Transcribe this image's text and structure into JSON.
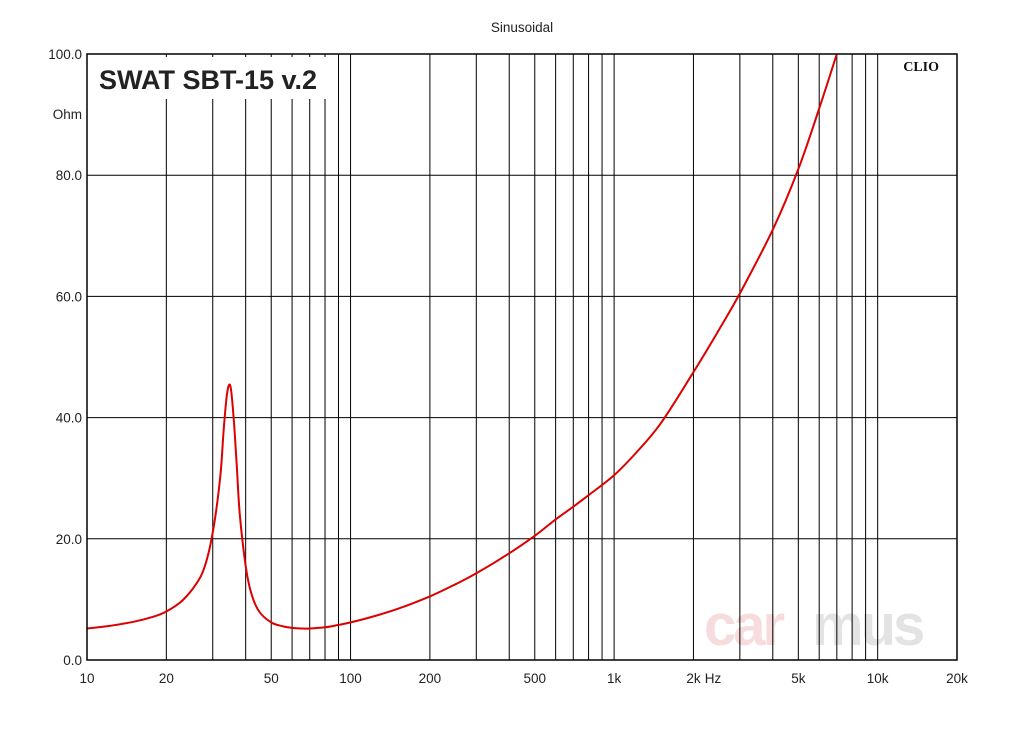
{
  "chart_data": {
    "type": "line",
    "title": "Sinusoidal",
    "product_label": "SWAT SBT-15 v.2",
    "brand_mark": "CLIO",
    "watermark": {
      "part1": "car",
      "part2": "mus"
    },
    "x_scale": "log",
    "xlim": [
      10,
      20000
    ],
    "ylim": [
      0,
      100
    ],
    "ylabel": "Ohm",
    "x_unit_label": "Hz",
    "grid": true,
    "x_ticks": [
      {
        "value": 10,
        "label": "10"
      },
      {
        "value": 20,
        "label": "20"
      },
      {
        "value": 50,
        "label": "50"
      },
      {
        "value": 100,
        "label": "100"
      },
      {
        "value": 200,
        "label": "200"
      },
      {
        "value": 500,
        "label": "500"
      },
      {
        "value": 1000,
        "label": "1k"
      },
      {
        "value": 2000,
        "label": "2k"
      },
      {
        "value": 5000,
        "label": "5k"
      },
      {
        "value": 10000,
        "label": "10k"
      },
      {
        "value": 20000,
        "label": "20k"
      }
    ],
    "y_ticks": [
      {
        "value": 0,
        "label": "0.0"
      },
      {
        "value": 20,
        "label": "20.0"
      },
      {
        "value": 40,
        "label": "40.0"
      },
      {
        "value": 60,
        "label": "60.0"
      },
      {
        "value": 80,
        "label": "80.0"
      },
      {
        "value": 100,
        "label": "100.0"
      }
    ],
    "series": [
      {
        "color": "#dd0000",
        "x": [
          10,
          12,
          15,
          18,
          20,
          23,
          26,
          28,
          30,
          32,
          33,
          34,
          35,
          36,
          37,
          38,
          40,
          42,
          45,
          50,
          55,
          60,
          65,
          70,
          80,
          90,
          100,
          120,
          150,
          200,
          250,
          300,
          400,
          500,
          600,
          700,
          800,
          1000,
          1200,
          1500,
          2000,
          2500,
          3000,
          4000,
          5000,
          6000,
          7000
        ],
        "y": [
          5.2,
          5.6,
          6.3,
          7.2,
          8.0,
          9.8,
          12.6,
          15.5,
          21.0,
          30.0,
          38.0,
          44.0,
          45.2,
          40.0,
          32.0,
          24.0,
          15.5,
          11.0,
          8.0,
          6.2,
          5.6,
          5.3,
          5.2,
          5.2,
          5.4,
          5.8,
          6.2,
          7.1,
          8.4,
          10.5,
          12.5,
          14.3,
          17.6,
          20.5,
          23.2,
          25.3,
          27.2,
          30.5,
          34.0,
          39.0,
          47.5,
          54.5,
          60.5,
          71.0,
          81.0,
          91.0,
          100.0
        ]
      }
    ]
  }
}
